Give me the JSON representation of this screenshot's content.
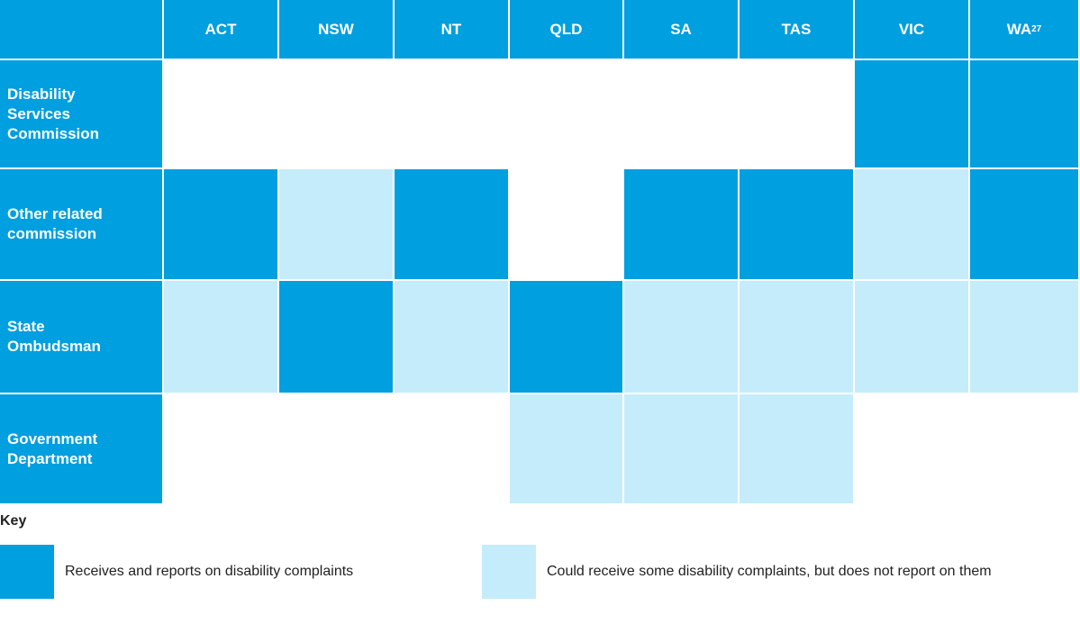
{
  "table": {
    "columns": [
      {
        "label": "ACT"
      },
      {
        "label": "NSW"
      },
      {
        "label": "NT"
      },
      {
        "label": "QLD"
      },
      {
        "label": "SA"
      },
      {
        "label": "TAS"
      },
      {
        "label": "VIC"
      },
      {
        "label": "WA",
        "note": "27"
      }
    ],
    "rows": [
      {
        "label": "Disability Services Commission",
        "cells": [
          null,
          null,
          null,
          null,
          null,
          null,
          0,
          0
        ]
      },
      {
        "label": "Other related commission",
        "cells": [
          0,
          1,
          0,
          null,
          0,
          0,
          1,
          0
        ]
      },
      {
        "label": "State Ombudsman",
        "cells": [
          1,
          0,
          1,
          0,
          1,
          1,
          1,
          1
        ]
      },
      {
        "label": "Government Department",
        "cells": [
          null,
          null,
          null,
          1,
          1,
          1,
          null,
          null
        ]
      }
    ],
    "header_color": "#009fdf"
  },
  "key": {
    "title": "Key",
    "items": [
      {
        "color": "#009fdf",
        "label": "Receives and reports on disability complaints"
      },
      {
        "color": "#c5ecfb",
        "label": "Could receive some disability complaints, but does not report on them"
      }
    ]
  }
}
